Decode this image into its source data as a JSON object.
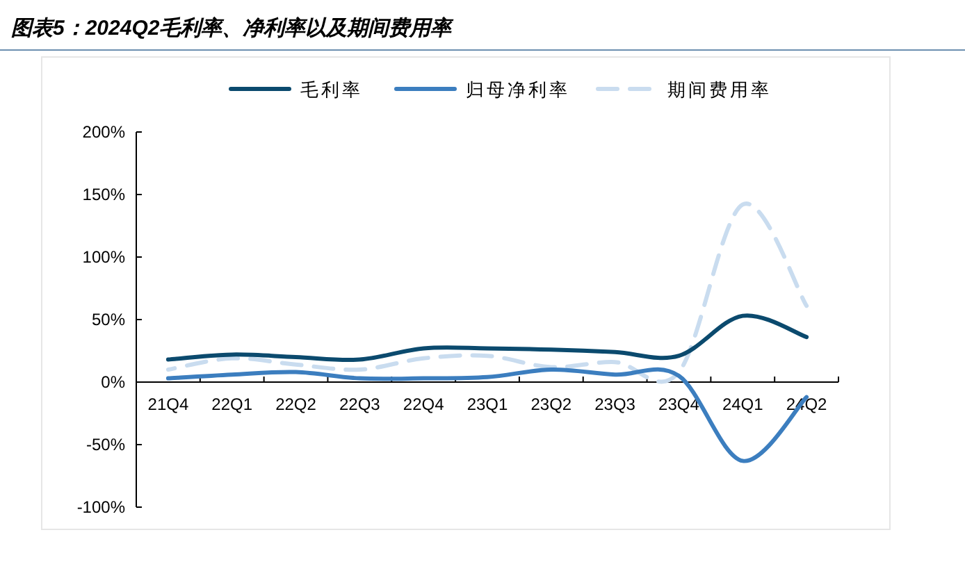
{
  "chart_data": {
    "type": "line",
    "title": "图表5：2024Q2毛利率、净利率以及期间费用率",
    "categories": [
      "21Q4",
      "22Q1",
      "22Q2",
      "22Q3",
      "22Q4",
      "23Q1",
      "23Q2",
      "23Q3",
      "23Q4",
      "24Q1",
      "24Q2"
    ],
    "series": [
      {
        "name": "毛利率",
        "color": "#0b4a6e",
        "line_style": "solid",
        "values": [
          18,
          22,
          20,
          18,
          27,
          27,
          26,
          24,
          21,
          53,
          36
        ]
      },
      {
        "name": "归母净利率",
        "color": "#3c7ebf",
        "line_style": "solid",
        "values": [
          3,
          6,
          8,
          3,
          3,
          4,
          10,
          6,
          5,
          -63,
          -12
        ]
      },
      {
        "name": "期间费用率",
        "color": "#c9dcef",
        "line_style": "dashed",
        "values": [
          10,
          19,
          14,
          10,
          19,
          21,
          12,
          16,
          8,
          142,
          61
        ]
      }
    ],
    "ylim": [
      -100,
      200
    ],
    "yticks": [
      {
        "value": -100,
        "label": "-100%"
      },
      {
        "value": -50,
        "label": "-50%"
      },
      {
        "value": 0,
        "label": "0%"
      },
      {
        "value": 50,
        "label": "50%"
      },
      {
        "value": 100,
        "label": "100%"
      },
      {
        "value": 150,
        "label": "150%"
      },
      {
        "value": 200,
        "label": "200%"
      }
    ],
    "legend": "top",
    "grid": false
  }
}
